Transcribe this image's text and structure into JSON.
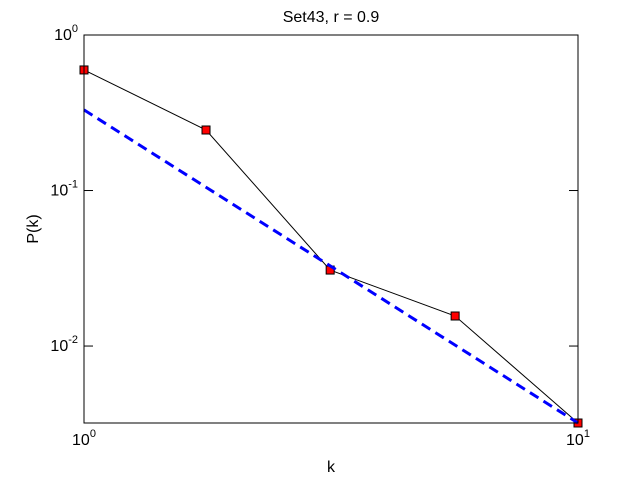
{
  "chart_data": {
    "type": "line",
    "title": "Set43, r = 0.9",
    "x_label": "k",
    "y_label": "P(k)",
    "x_scale": "log",
    "y_scale": "log",
    "xlim": [
      1,
      10
    ],
    "ylim": [
      0.0032,
      1
    ],
    "xticks": [
      {
        "value": 1,
        "label": "10^0"
      },
      {
        "value": 10,
        "label": "10^1"
      }
    ],
    "yticks": [
      {
        "value": 1,
        "label": "10^0"
      },
      {
        "value": 0.1,
        "label": "10^-1"
      },
      {
        "value": 0.01,
        "label": "10^-2"
      }
    ],
    "series": [
      {
        "x": [
          1,
          1.766,
          3.15,
          5.64,
          10
        ],
        "values": [
          0.596,
          0.245,
          0.0308,
          0.0156,
          0.0032
        ],
        "color": "#000000",
        "marker": "square",
        "marker_color": "#ff0000",
        "line_style": "solid"
      },
      {
        "x": [
          1,
          10
        ],
        "values": [
          0.33,
          0.0032
        ],
        "color": "#0000ff",
        "line_style": "dashed"
      }
    ]
  }
}
